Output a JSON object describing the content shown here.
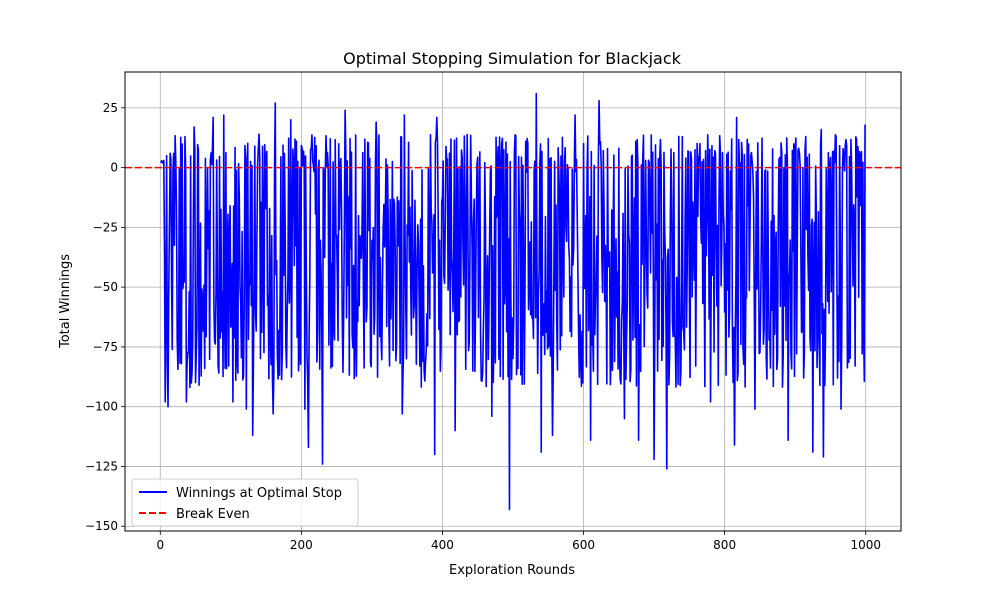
{
  "chart_data": {
    "type": "line",
    "title": "Optimal Stopping Simulation for Blackjack",
    "xlabel": "Exploration Rounds",
    "ylabel": "Total Winnings",
    "xlim": [
      -50,
      1050
    ],
    "ylim": [
      -152,
      40
    ],
    "xticks": [
      0,
      200,
      400,
      600,
      800,
      1000
    ],
    "yticks": [
      -150,
      -125,
      -100,
      -75,
      -50,
      -25,
      0,
      25
    ],
    "grid": true,
    "legend_position": "lower-left",
    "x_range": [
      1,
      999
    ],
    "series": [
      {
        "name": "Winnings at Optimal Stop",
        "color": "#0000ff",
        "line_style": "solid",
        "pattern": "noisy; mostly between -125 and +25, dense oscillation",
        "key_points": [
          {
            "x": 1,
            "y": 2
          },
          {
            "x": 5,
            "y": 3
          },
          {
            "x": 7,
            "y": -98
          },
          {
            "x": 9,
            "y": 5
          },
          {
            "x": 11,
            "y": -100
          },
          {
            "x": 14,
            "y": 6
          },
          {
            "x": 17,
            "y": -76
          },
          {
            "x": 22,
            "y": 3
          },
          {
            "x": 30,
            "y": -82
          },
          {
            "x": 35,
            "y": 13
          },
          {
            "x": 37,
            "y": -98
          },
          {
            "x": 48,
            "y": 17
          },
          {
            "x": 55,
            "y": -91
          },
          {
            "x": 63,
            "y": -84
          },
          {
            "x": 75,
            "y": 21
          },
          {
            "x": 90,
            "y": 22
          },
          {
            "x": 103,
            "y": -98
          },
          {
            "x": 122,
            "y": -101
          },
          {
            "x": 131,
            "y": -112
          },
          {
            "x": 140,
            "y": 14
          },
          {
            "x": 160,
            "y": -103
          },
          {
            "x": 163,
            "y": 27
          },
          {
            "x": 185,
            "y": 20
          },
          {
            "x": 205,
            "y": -101
          },
          {
            "x": 210,
            "y": -117
          },
          {
            "x": 230,
            "y": -124
          },
          {
            "x": 262,
            "y": 24
          },
          {
            "x": 306,
            "y": 19
          },
          {
            "x": 343,
            "y": -103
          },
          {
            "x": 346,
            "y": 22
          },
          {
            "x": 389,
            "y": -120
          },
          {
            "x": 392,
            "y": 21
          },
          {
            "x": 418,
            "y": -110
          },
          {
            "x": 470,
            "y": -104
          },
          {
            "x": 495,
            "y": -143
          },
          {
            "x": 533,
            "y": 31
          },
          {
            "x": 540,
            "y": -119
          },
          {
            "x": 556,
            "y": -112
          },
          {
            "x": 588,
            "y": 22
          },
          {
            "x": 610,
            "y": -114
          },
          {
            "x": 622,
            "y": 28
          },
          {
            "x": 658,
            "y": -105
          },
          {
            "x": 678,
            "y": -114
          },
          {
            "x": 700,
            "y": -122
          },
          {
            "x": 718,
            "y": -126
          },
          {
            "x": 745,
            "y": 4
          },
          {
            "x": 780,
            "y": -98
          },
          {
            "x": 814,
            "y": -116
          },
          {
            "x": 817,
            "y": 21
          },
          {
            "x": 843,
            "y": -101
          },
          {
            "x": 890,
            "y": -114
          },
          {
            "x": 925,
            "y": -119
          },
          {
            "x": 937,
            "y": 16
          },
          {
            "x": 940,
            "y": -121
          },
          {
            "x": 965,
            "y": -101
          },
          {
            "x": 985,
            "y": -83
          },
          {
            "x": 999,
            "y": 18
          }
        ]
      },
      {
        "name": "Break Even",
        "color": "#ff0000",
        "line_style": "dashed",
        "y": 0
      }
    ]
  }
}
